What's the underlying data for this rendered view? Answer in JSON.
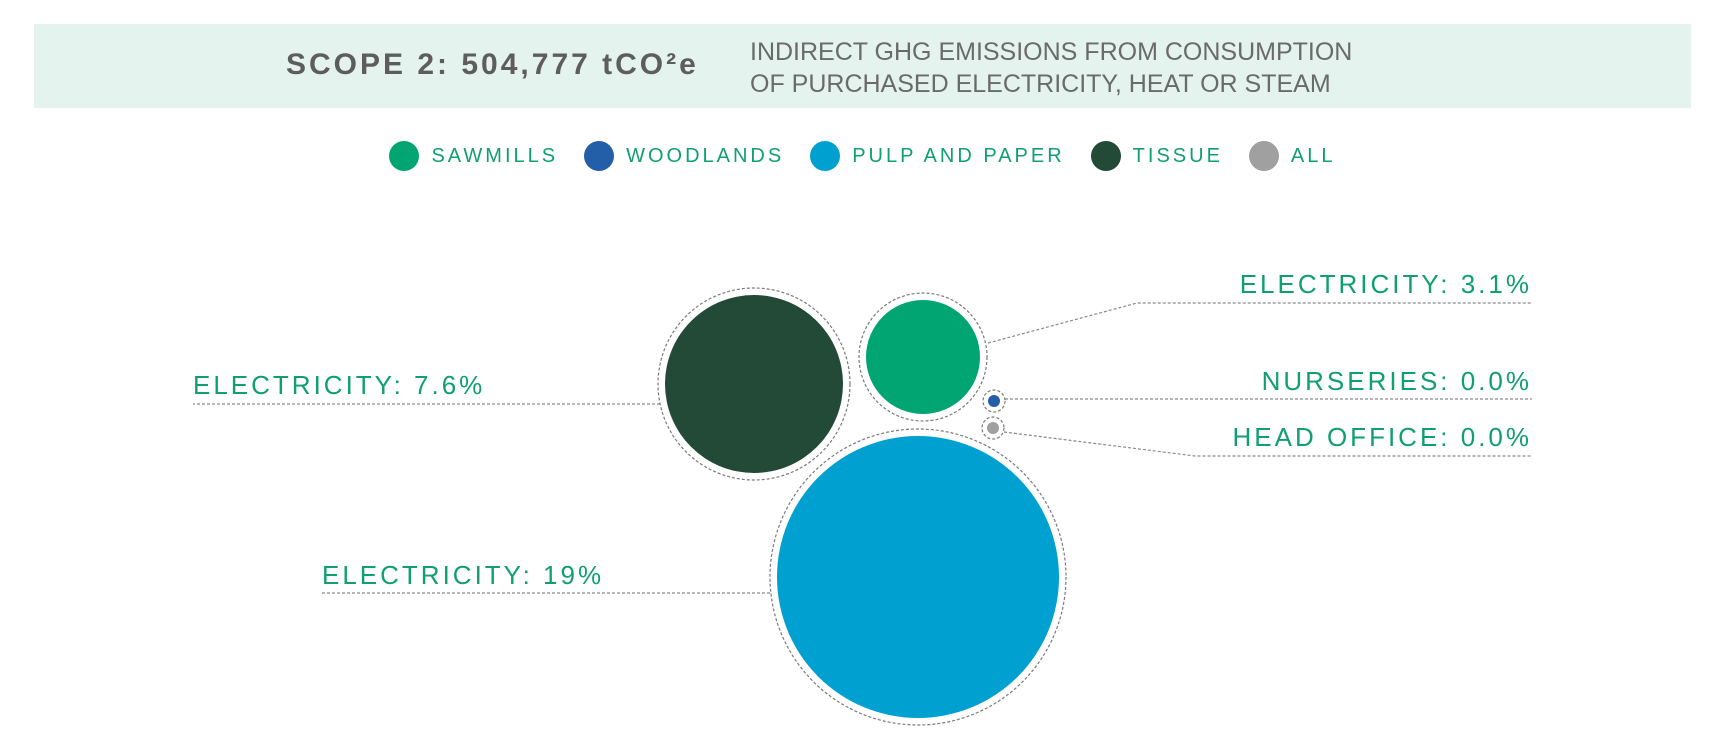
{
  "header": {
    "title": "SCOPE 2: 504,777 tCO²e",
    "description_line1": "INDIRECT GHG EMISSIONS FROM CONSUMPTION",
    "description_line2": "OF PURCHASED ELECTRICITY, HEAT OR STEAM"
  },
  "legend": [
    {
      "label": "SAWMILLS",
      "color": "#00a571"
    },
    {
      "label": "WOODLANDS",
      "color": "#225fa8"
    },
    {
      "label": "PULP AND PAPER",
      "color": "#00a0d0"
    },
    {
      "label": "TISSUE",
      "color": "#234a37"
    },
    {
      "label": "ALL",
      "color": "#a0a0a0"
    }
  ],
  "chart_data": {
    "type": "bubble",
    "title": "SCOPE 2: 504,777 tCO²e",
    "subtitle": "INDIRECT GHG EMISSIONS FROM CONSUMPTION OF PURCHASED ELECTRICITY, HEAT OR STEAM",
    "series": [
      {
        "name": "TISSUE",
        "label": "ELECTRICITY: 7.6%",
        "value": 7.6,
        "color": "#234a37"
      },
      {
        "name": "SAWMILLS",
        "label": "ELECTRICITY: 3.1%",
        "value": 3.1,
        "color": "#00a571"
      },
      {
        "name": "WOODLANDS",
        "label": "NURSERIES: 0.0%",
        "value": 0.0,
        "color": "#225fa8"
      },
      {
        "name": "ALL",
        "label": "HEAD OFFICE: 0.0%",
        "value": 0.0,
        "color": "#a0a0a0"
      },
      {
        "name": "PULP AND PAPER",
        "label": "ELECTRICITY: 19%",
        "value": 19,
        "color": "#00a0d0"
      }
    ]
  }
}
